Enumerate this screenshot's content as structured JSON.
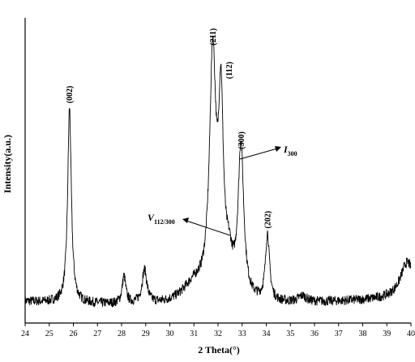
{
  "chart_data": {
    "type": "line",
    "xlabel": "2 Theta(°)",
    "ylabel": "Intensity(a.u.)",
    "xlim": [
      24,
      40
    ],
    "ylim": [
      0,
      100
    ],
    "y_unit": "a.u.",
    "x_ticks": [
      "24",
      "25",
      "26",
      "27",
      "28",
      "29",
      "30",
      "31",
      "32",
      "33",
      "34",
      "35",
      "36",
      "37",
      "38",
      "39",
      "40"
    ],
    "grid": false,
    "baseline": 7,
    "peaks": [
      {
        "x": 25.84,
        "height": 64,
        "width": 0.09
      },
      {
        "x": 28.1,
        "height": 9,
        "width": 0.09
      },
      {
        "x": 28.95,
        "height": 11,
        "width": 0.12
      },
      {
        "x": 31.0,
        "height": 6,
        "width": 0.6
      },
      {
        "x": 31.78,
        "height": 78,
        "width": 0.16
      },
      {
        "x": 32.12,
        "height": 60,
        "width": 0.12
      },
      {
        "x": 32.45,
        "height": 10,
        "width": 0.18
      },
      {
        "x": 32.95,
        "height": 50,
        "width": 0.14
      },
      {
        "x": 34.05,
        "height": 22,
        "width": 0.1
      },
      {
        "x": 35.5,
        "height": 2,
        "width": 0.2
      },
      {
        "x": 39.85,
        "height": 12,
        "width": 0.35
      }
    ],
    "peak_labels": [
      {
        "label": "(002)",
        "x": 25.84
      },
      {
        "label": "(211)",
        "x": 31.78
      },
      {
        "label": "(112)",
        "x": 32.12
      },
      {
        "label": "(300)",
        "x": 32.95
      },
      {
        "label": "(202)",
        "x": 34.05
      }
    ],
    "annotations": [
      {
        "main": "I",
        "sub": "300"
      },
      {
        "main": "V",
        "sub": "112/300"
      }
    ]
  }
}
